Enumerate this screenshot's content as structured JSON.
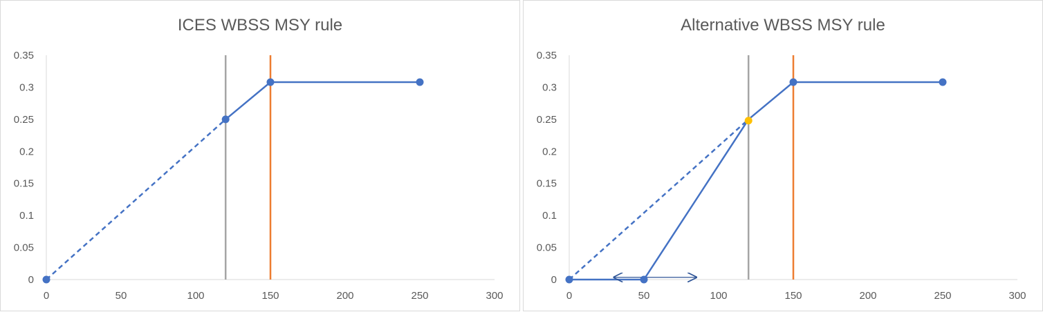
{
  "chart_data": [
    {
      "type": "line",
      "title": "ICES WBSS MSY rule",
      "xlabel": "",
      "ylabel": "",
      "xlim": [
        0,
        300
      ],
      "ylim": [
        0,
        0.35
      ],
      "x_ticks": [
        "0",
        "50",
        "100",
        "150",
        "200",
        "250",
        "300"
      ],
      "y_ticks": [
        "0",
        "0.05",
        "0.1",
        "0.15",
        "0.2",
        "0.25",
        "0.3",
        "0.35"
      ],
      "grid": false,
      "series": [
        {
          "style": "dashed",
          "color": "#4472c4",
          "points": [
            [
              0,
              0
            ],
            [
              120,
              0.25
            ]
          ]
        },
        {
          "style": "solid",
          "color": "#4472c4",
          "points": [
            [
              120,
              0.25
            ],
            [
              150,
              0.308
            ],
            [
              250,
              0.308
            ]
          ]
        }
      ],
      "markers": [
        {
          "x": 0,
          "y": 0,
          "color": "#4472c4"
        },
        {
          "x": 120,
          "y": 0.25,
          "color": "#4472c4"
        },
        {
          "x": 150,
          "y": 0.308,
          "color": "#4472c4"
        },
        {
          "x": 250,
          "y": 0.308,
          "color": "#4472c4"
        }
      ],
      "vlines": [
        {
          "x": 120,
          "color": "#a5a5a5"
        },
        {
          "x": 150,
          "color": "#ed7d31"
        }
      ],
      "arrows": []
    },
    {
      "type": "line",
      "title": "Alternative WBSS MSY rule",
      "xlabel": "",
      "ylabel": "",
      "xlim": [
        0,
        300
      ],
      "ylim": [
        0,
        0.35
      ],
      "x_ticks": [
        "0",
        "50",
        "100",
        "150",
        "200",
        "250",
        "300"
      ],
      "y_ticks": [
        "0",
        "0.05",
        "0.1",
        "0.15",
        "0.2",
        "0.25",
        "0.3",
        "0.35"
      ],
      "grid": false,
      "series": [
        {
          "style": "dashed",
          "color": "#4472c4",
          "points": [
            [
              0,
              0
            ],
            [
              120,
              0.25
            ]
          ]
        },
        {
          "style": "solid",
          "color": "#4472c4",
          "points": [
            [
              0,
              0
            ],
            [
              50,
              0
            ],
            [
              120,
              0.25
            ],
            [
              150,
              0.308
            ],
            [
              250,
              0.308
            ]
          ]
        }
      ],
      "markers": [
        {
          "x": 0,
          "y": 0,
          "color": "#4472c4"
        },
        {
          "x": 50,
          "y": 0,
          "color": "#4472c4"
        },
        {
          "x": 120,
          "y": 0.248,
          "color": "#ffc000"
        },
        {
          "x": 150,
          "y": 0.308,
          "color": "#4472c4"
        },
        {
          "x": 250,
          "y": 0.308,
          "color": "#4472c4"
        }
      ],
      "vlines": [
        {
          "x": 120,
          "color": "#a5a5a5"
        },
        {
          "x": 150,
          "color": "#ed7d31"
        }
      ],
      "arrows": [
        {
          "from": [
            30,
            0.0035
          ],
          "to": [
            85,
            0.0035
          ],
          "color": "#2f5597",
          "double_headed": true
        }
      ]
    }
  ]
}
